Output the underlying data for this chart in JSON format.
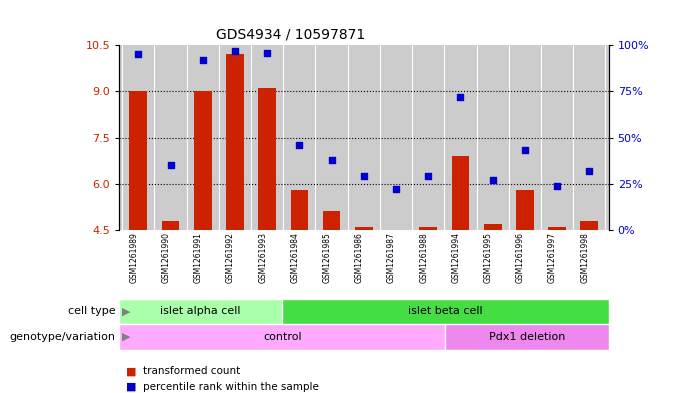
{
  "title": "GDS4934 / 10597871",
  "samples": [
    "GSM1261989",
    "GSM1261990",
    "GSM1261991",
    "GSM1261992",
    "GSM1261993",
    "GSM1261984",
    "GSM1261985",
    "GSM1261986",
    "GSM1261987",
    "GSM1261988",
    "GSM1261994",
    "GSM1261995",
    "GSM1261996",
    "GSM1261997",
    "GSM1261998"
  ],
  "bar_values": [
    9.0,
    4.8,
    9.0,
    10.2,
    9.1,
    5.8,
    5.1,
    4.6,
    4.5,
    4.6,
    6.9,
    4.7,
    5.8,
    4.6,
    4.8
  ],
  "scatter_values": [
    95,
    35,
    92,
    97,
    96,
    46,
    38,
    29,
    22,
    29,
    72,
    27,
    43,
    24,
    32
  ],
  "ylim_left": [
    4.5,
    10.5
  ],
  "ylim_right": [
    0,
    100
  ],
  "yticks_left": [
    4.5,
    6.0,
    7.5,
    9.0,
    10.5
  ],
  "yticks_right": [
    0,
    25,
    50,
    75,
    100
  ],
  "ytick_labels_right": [
    "0%",
    "25%",
    "50%",
    "75%",
    "100%"
  ],
  "bar_color": "#cc2200",
  "scatter_color": "#0000cc",
  "bg_color": "#cccccc",
  "cell_type_groups": [
    {
      "label": "islet alpha cell",
      "start": 0,
      "end": 5,
      "color": "#aaffaa"
    },
    {
      "label": "islet beta cell",
      "start": 5,
      "end": 15,
      "color": "#44dd44"
    }
  ],
  "genotype_groups": [
    {
      "label": "control",
      "start": 0,
      "end": 10,
      "color": "#ffaaff"
    },
    {
      "label": "Pdx1 deletion",
      "start": 10,
      "end": 15,
      "color": "#ee88ee"
    }
  ],
  "legend_items": [
    {
      "color": "#cc2200",
      "label": "transformed count"
    },
    {
      "color": "#0000cc",
      "label": "percentile rank within the sample"
    }
  ],
  "grid_lines": [
    6.0,
    7.5,
    9.0
  ],
  "row_label_cell": "cell type",
  "row_label_geno": "genotype/variation"
}
